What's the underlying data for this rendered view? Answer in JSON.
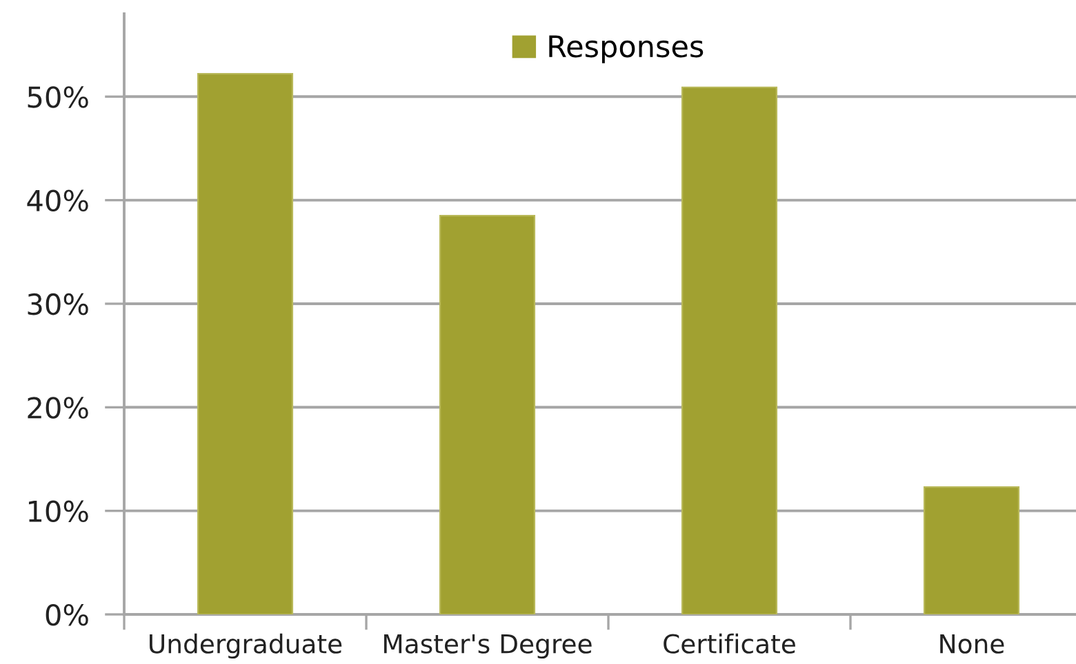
{
  "chart_data": {
    "type": "bar",
    "categories": [
      "Undergraduate",
      "Master's Degree",
      "Certificate",
      "None"
    ],
    "series": [
      {
        "name": "Responses",
        "color": "#a1a131",
        "values": [
          52.2,
          38.5,
          50.9,
          12.3
        ]
      }
    ],
    "ylim": [
      0,
      58
    ],
    "yticks": [
      {
        "value": 0,
        "label": "0%"
      },
      {
        "value": 10,
        "label": "10%"
      },
      {
        "value": 20,
        "label": "20%"
      },
      {
        "value": 30,
        "label": "30%"
      },
      {
        "value": 40,
        "label": "40%"
      },
      {
        "value": 50,
        "label": "50%"
      }
    ],
    "grid": "y",
    "legend": "top"
  }
}
